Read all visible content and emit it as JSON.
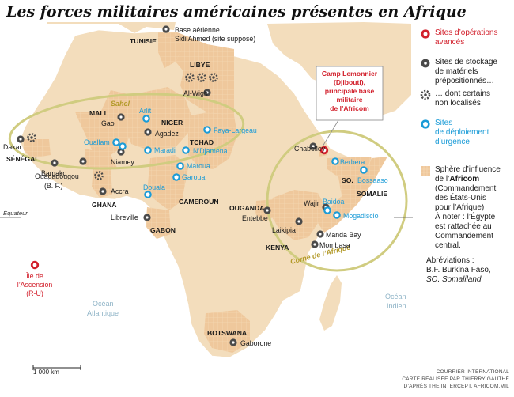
{
  "title": "Les forces militaires américaines présentes en Afrique",
  "colors": {
    "land": "#f3ddbc",
    "africom": "#efc89c",
    "water": "#ffffff",
    "red_site": "#d2202c",
    "blue_site": "#1a9bd7",
    "grey_site": "#4a4a4a",
    "zone_outline": "#d0cc80",
    "zone_label": "#b39a2a"
  },
  "regions": {
    "sahel": "Sahel",
    "horn": "Corne de l’Afrique"
  },
  "equator": "Équateur",
  "oceans": {
    "atlantic": [
      "Océan",
      "Atlantique"
    ],
    "indian": [
      "Océan",
      "Indien"
    ]
  },
  "countries": {
    "tunisie": "TUNISIE",
    "libye": "LIBYE",
    "mali": "MALI",
    "niger": "NIGER",
    "tchad": "TCHAD",
    "senegal": "SÉNÉGAL",
    "ghana": "GHANA",
    "cameroun": "CAMEROUN",
    "gabon": "GABON",
    "ouganda": "OUGANDA",
    "kenya": "KENYA",
    "so": "SO.",
    "somalie": "SOMALIE",
    "botswana": "BOTSWANA"
  },
  "sites": {
    "tunisie_base": [
      "Base aérienne",
      "Sidi Ahmed (site supposé)"
    ],
    "al_wigh": "Al-Wigh",
    "gao": "Gao",
    "agadez": "Agadez",
    "arlit": "Arlit",
    "faya": "Faya-Largeau",
    "ouallam": "Ouallam",
    "maradi": "Maradi",
    "ndjamena": "N’Djamena",
    "niamey": "Niamey",
    "dakar": "Dakar",
    "bamako": "Bamako",
    "ouaga": [
      "Ouagadougou",
      "(B. F.)"
    ],
    "accra": "Accra",
    "maroua": "Maroua",
    "garoua": "Garoua",
    "douala": "Douala",
    "libreville": "Libreville",
    "chabelley": "Chabelley",
    "lemonnier": [
      "Camp Lemonnier",
      "(Djibouti),",
      "principale base",
      "militaire",
      "de l’Africom"
    ],
    "berbera": "Berbera",
    "bossaso": "Bossaaso",
    "baidoa": "Baidoa",
    "mogadiscio": "Mogadiscio",
    "wajir": "Wajir",
    "entebbe": "Entebbe",
    "laikipia": "Laikipia",
    "manda_bay": "Manda Bay",
    "mombasa": "Mombasa",
    "gaborone": "Gaborone",
    "ascension": [
      "Île de",
      "l’Ascension",
      "(R-U)"
    ]
  },
  "legend": {
    "red": [
      "Sites d’opérations",
      "avancés"
    ],
    "grey": [
      "Sites de stockage",
      "de matériels",
      "prépositionnés…"
    ],
    "dotted": [
      "… dont certains",
      "non localisés"
    ],
    "blue": [
      "Sites",
      "de déploiement",
      "d’urgence"
    ],
    "zone_lines": [
      "Sphère d’influence",
      "de l’**Africom**",
      "(Commandement",
      "des États-Unis",
      "pour l’Afrique)",
      "À noter : l’Égypte",
      "est rattachée au",
      "Commandement",
      "central."
    ]
  },
  "abbreviations": {
    "title": "Abréviations :",
    "bf": "B.F. Burkina Faso,",
    "so": "SO. Somaliland"
  },
  "scale": "1 000 km",
  "credits": [
    "COURRIER INTERNATIONAL",
    "CARTE RÉALISÉE PAR THIERRY GAUTHÉ",
    "D’APRÈS THE INTERCEPT, AFRICOM.MIL"
  ]
}
